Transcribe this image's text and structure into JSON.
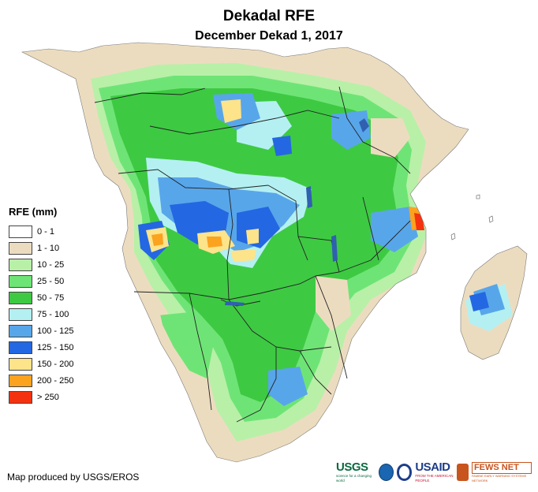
{
  "title": "Dekadal RFE",
  "subtitle": "December Dekad 1, 2017",
  "legend": {
    "title": "RFE (mm)",
    "classes": [
      {
        "label": "0 - 1",
        "color": "#ffffff"
      },
      {
        "label": "1 - 10",
        "color": "#ecdcbf"
      },
      {
        "label": "10 - 25",
        "color": "#b8f0a8"
      },
      {
        "label": "25 - 50",
        "color": "#6fe476"
      },
      {
        "label": "50 - 75",
        "color": "#3ec943"
      },
      {
        "label": "75 - 100",
        "color": "#b4f0f2"
      },
      {
        "label": "100 - 125",
        "color": "#58a6ea"
      },
      {
        "label": "125 - 150",
        "color": "#2467e2"
      },
      {
        "label": "150 - 200",
        "color": "#fde38a"
      },
      {
        "label": "200 - 250",
        "color": "#fba21f"
      },
      {
        "label": "> 250",
        "color": "#f5320f"
      }
    ]
  },
  "credit": "Map produced by USGS/EROS",
  "logos": {
    "usgs": {
      "text": "USGS",
      "tagline": "science for a changing world"
    },
    "noaa": {
      "icon": "noaa-icon"
    },
    "usaid": {
      "text": "USAID",
      "tagline": "FROM THE AMERICAN PEOPLE"
    },
    "fews": {
      "text": "FEWS NET",
      "tagline": "FAMINE EARLY WARNING SYSTEMS NETWORK"
    }
  }
}
